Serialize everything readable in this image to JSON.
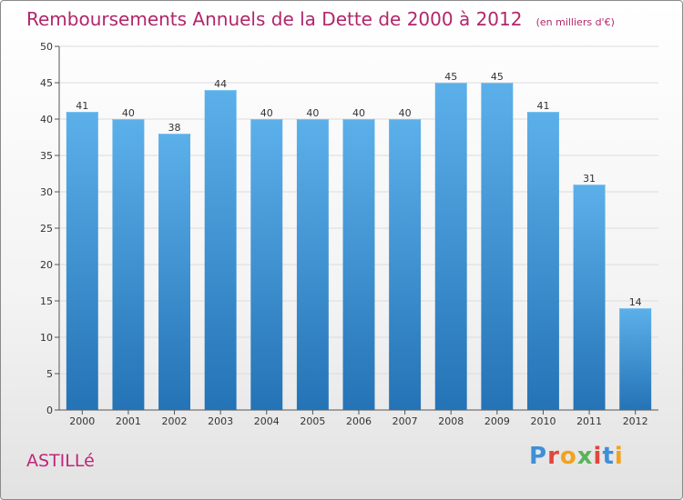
{
  "title": "Remboursements Annuels de la Dette de 2000 à 2012",
  "unit_note": "(en milliers d'€)",
  "commune": "ASTILLé",
  "brand": {
    "text": "Proxiti",
    "colors": [
      "#3f8fd8",
      "#e2453b",
      "#f2a31b",
      "#5bb35b",
      "#e2453b",
      "#3f8fd8",
      "#f2a31b"
    ]
  },
  "colors": {
    "bar": "#3a8fd8",
    "bar_light": "#5cb0ea",
    "bar_dark": "#2473b6",
    "title": "#b2266b"
  },
  "chart_data": {
    "type": "bar",
    "categories": [
      "2000",
      "2001",
      "2002",
      "2003",
      "2004",
      "2005",
      "2006",
      "2007",
      "2008",
      "2009",
      "2010",
      "2011",
      "2012"
    ],
    "values": [
      41,
      40,
      38,
      44,
      40,
      40,
      40,
      40,
      45,
      45,
      41,
      31,
      14
    ],
    "y_ticks": [
      0,
      5,
      10,
      15,
      20,
      25,
      30,
      35,
      40,
      45,
      50
    ],
    "ylim": [
      0,
      50
    ],
    "grid": true,
    "legend": "none"
  }
}
